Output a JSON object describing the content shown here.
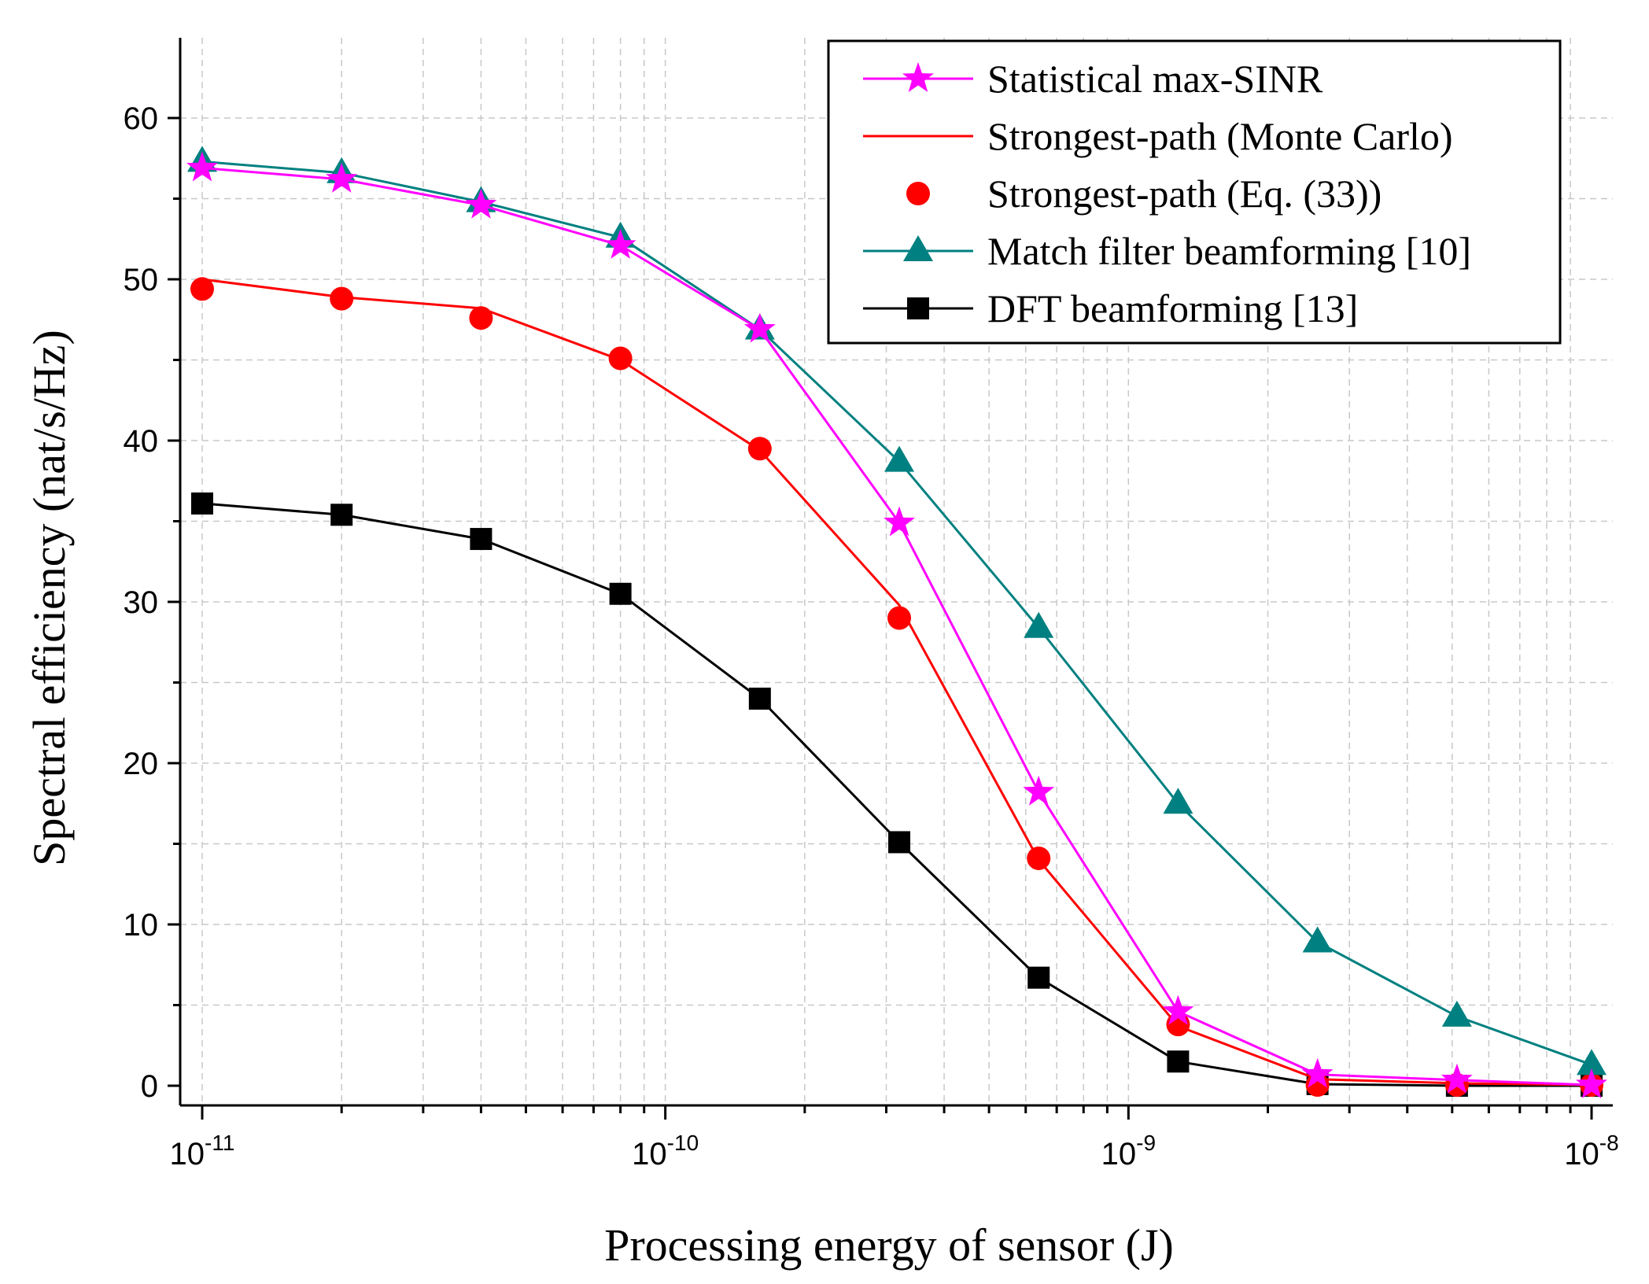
{
  "chart_data": {
    "type": "line",
    "title": "",
    "xlabel": "Processing energy of sensor (J)",
    "ylabel": "Spectral efficiency (nat/s/Hz)",
    "xscale": "log",
    "xlim": [
      1e-11,
      1e-08
    ],
    "ylim": [
      -1,
      65
    ],
    "grid": true,
    "legend_position": "top-right",
    "x": [
      1e-11,
      2e-11,
      4e-11,
      8e-11,
      1.6e-10,
      3.2e-10,
      6.4e-10,
      1.28e-09,
      2.56e-09,
      5.12e-09,
      1e-08
    ],
    "x_ticks": [
      {
        "value": 1e-11,
        "base": "10",
        "exp": "-11"
      },
      {
        "value": 1e-10,
        "base": "10",
        "exp": "-10"
      },
      {
        "value": 1e-09,
        "base": "10",
        "exp": "-9"
      },
      {
        "value": 1e-08,
        "base": "10",
        "exp": "-8"
      }
    ],
    "y_ticks": [
      "0",
      "10",
      "20",
      "30",
      "40",
      "50",
      "60"
    ],
    "series": [
      {
        "name": "Statistical max-SINR",
        "color": "#ff00ff",
        "marker": "star",
        "line": true,
        "values": [
          56.9,
          56.2,
          54.6,
          52.1,
          46.9,
          34.9,
          18.2,
          4.6,
          0.7,
          0.35,
          0.05
        ]
      },
      {
        "name": "Strongest-path (Monte Carlo)",
        "color": "#ff0000",
        "marker": "none",
        "line": true,
        "values": [
          50.0,
          48.9,
          48.2,
          45.0,
          39.4,
          29.8,
          14.0,
          3.7,
          0.4,
          0.15,
          0.05
        ]
      },
      {
        "name": "Strongest-path (Eq. (33))",
        "color": "#ff0000",
        "marker": "circle",
        "line": false,
        "values": [
          49.4,
          48.8,
          47.6,
          45.1,
          39.5,
          29.0,
          14.1,
          3.8,
          0.05,
          0.05,
          0.05
        ]
      },
      {
        "name": "Match filter beamforming [10]",
        "color": "#008080",
        "marker": "triangle",
        "line": true,
        "values": [
          57.3,
          56.6,
          54.8,
          52.6,
          46.9,
          38.7,
          28.4,
          17.5,
          8.9,
          4.3,
          1.3
        ]
      },
      {
        "name": "DFT beamforming [13]",
        "color": "#000000",
        "marker": "square",
        "line": true,
        "values": [
          36.1,
          35.4,
          33.9,
          30.5,
          24.0,
          15.1,
          6.7,
          1.5,
          0.1,
          0.0,
          0.0
        ]
      }
    ]
  }
}
